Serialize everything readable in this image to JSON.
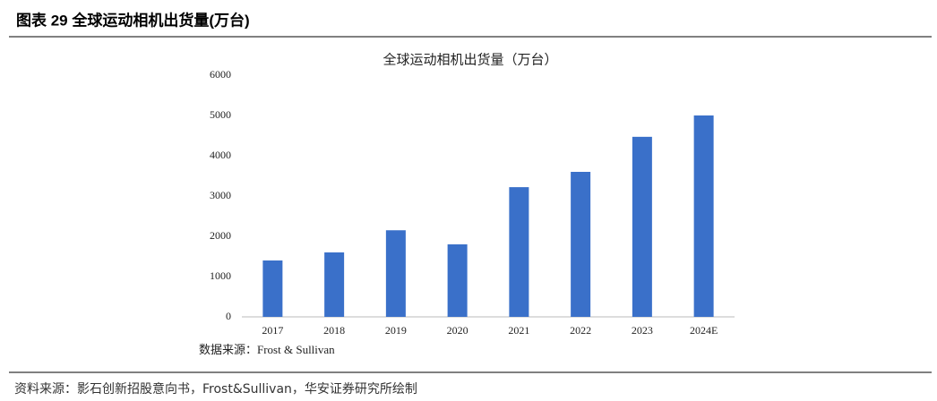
{
  "header": {
    "title": "图表 29 全球运动相机出货量(万台)"
  },
  "chart_data": {
    "type": "bar",
    "title": "全球运动相机出货量（万台）",
    "categories": [
      "2017",
      "2018",
      "2019",
      "2020",
      "2021",
      "2022",
      "2023",
      "2024E"
    ],
    "values": [
      1400,
      1600,
      2150,
      1800,
      3220,
      3600,
      4470,
      5000
    ],
    "color": "#3a70c9",
    "ylim": [
      0,
      6000
    ],
    "yticks": [
      0,
      1000,
      2000,
      3000,
      4000,
      5000,
      6000
    ],
    "grid": false,
    "source_note": "数据来源：Frost & Sullivan"
  },
  "footer": {
    "source": "资料来源：影石创新招股意向书，Frost&Sullivan，华安证券研究所绘制"
  }
}
